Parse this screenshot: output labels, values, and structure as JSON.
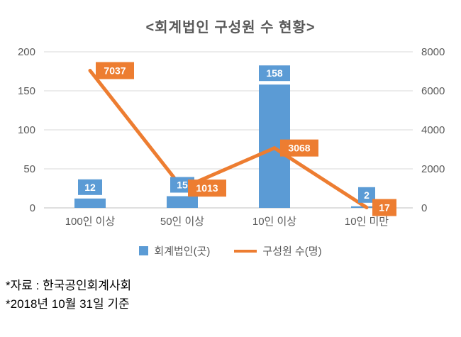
{
  "chart_data": {
    "type": "combo-bar-line",
    "title": "<회계법인 구성원 수 현황>",
    "categories": [
      "100인 이상",
      "50인 이상",
      "10인 이상",
      "10인 미만"
    ],
    "series": [
      {
        "name": "회계법인(곳)",
        "type": "bar",
        "axis": "left",
        "color": "#5B9BD5",
        "values": [
          12,
          15,
          158,
          2
        ]
      },
      {
        "name": "구성원 수(명)",
        "type": "line",
        "axis": "right",
        "color": "#ED7D31",
        "values": [
          7037,
          1013,
          3068,
          17
        ]
      }
    ],
    "left_axis": {
      "min": 0,
      "max": 200,
      "ticks": [
        0,
        50,
        100,
        150,
        200
      ]
    },
    "right_axis": {
      "min": 0,
      "max": 8000,
      "ticks": [
        0,
        2000,
        4000,
        6000,
        8000
      ]
    },
    "grid": true,
    "legend_position": "bottom",
    "gridline_color": "#D9D9D9",
    "axis_line_color": "#BFBFBF",
    "axis_text_color": "#595959"
  },
  "footnotes": [
    "*자료 : 한국공인회계사회",
    "*2018년 10월 31일 기준"
  ]
}
